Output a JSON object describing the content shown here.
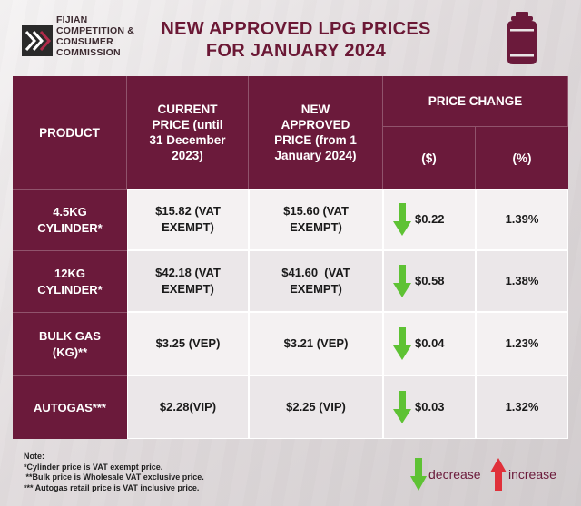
{
  "header": {
    "org_line1": "FIJIAN",
    "org_line2": "COMPETITION &",
    "org_line3": "CONSUMER",
    "org_line4": "COMMISSION",
    "title_line1": "NEW APPROVED LPG PRICES",
    "title_line2": "FOR JANUARY 2024"
  },
  "table": {
    "col_product": "PRODUCT",
    "col_current_l1": "CURRENT",
    "col_current_l2": "PRICE (until",
    "col_current_l3": "31 December",
    "col_current_l4": "2023)",
    "col_new_l1": "NEW",
    "col_new_l2": "APPROVED",
    "col_new_l3": "PRICE (from 1",
    "col_new_l4": "January 2024)",
    "col_change": "PRICE CHANGE",
    "col_change_dollar": "($)",
    "col_change_pct": "(%)",
    "rows": [
      {
        "product_l1": "4.5KG",
        "product_l2": "CYLINDER*",
        "current_l1": "$15.82 (VAT",
        "current_l2": "EXEMPT)",
        "new_l1": "$15.60 (VAT",
        "new_l2": "EXEMPT)",
        "change": "$0.22",
        "pct": "1.39%",
        "direction": "decrease"
      },
      {
        "product_l1": "12KG",
        "product_l2": "CYLINDER*",
        "current_l1": "$42.18 (VAT",
        "current_l2": "EXEMPT)",
        "new_l1": "$41.60  (VAT",
        "new_l2": "EXEMPT)",
        "change": "$0.58",
        "pct": "1.38%",
        "direction": "decrease"
      },
      {
        "product_l1": "BULK GAS",
        "product_l2": "(KG)**",
        "current_l1": "$3.25 (VEP)",
        "current_l2": "",
        "new_l1": "$3.21 (VEP)",
        "new_l2": "",
        "change": "$0.04",
        "pct": "1.23%",
        "direction": "decrease"
      },
      {
        "product_l1": "AUTOGAS***",
        "product_l2": "",
        "current_l1": "$2.28(VIP)",
        "current_l2": "",
        "new_l1": "$2.25 (VIP)",
        "new_l2": "",
        "change": "$0.03",
        "pct": "1.32%",
        "direction": "decrease"
      }
    ]
  },
  "notes": {
    "heading": "Note:",
    "line1": "*Cylinder price is VAT exempt price.",
    "line2": " **Bulk price is Wholesale VAT exclusive price.",
    "line3": "*** Autogas retail price is VAT inclusive price."
  },
  "legend": {
    "decrease_label": "decrease",
    "increase_label": "increase"
  },
  "colors": {
    "brand_maroon": "#6b1a3b",
    "decrease_green": "#5ec234",
    "increase_red": "#e0303a"
  }
}
